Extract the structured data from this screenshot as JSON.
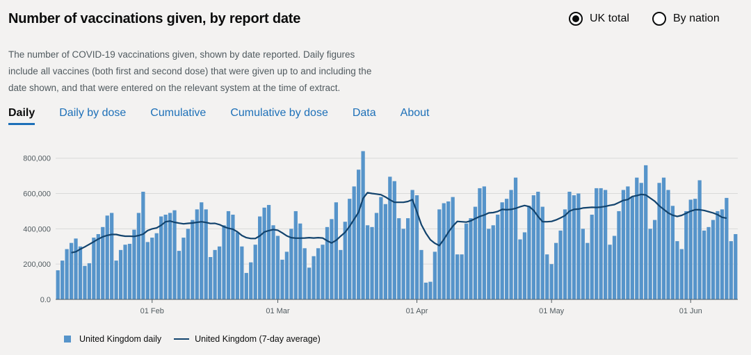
{
  "header": {
    "title": "Number of vaccinations given, by report date",
    "toggle_uk": "UK total",
    "toggle_nation": "By nation"
  },
  "description": "The number of COVID-19 vaccinations given, shown by date reported. Daily figures include all vaccines (both first and second dose) that were given up to and including the date shown, and that were entered on the relevant system at the time of extract.",
  "tabs": [
    "Daily",
    "Daily by dose",
    "Cumulative",
    "Cumulative by dose",
    "Data",
    "About"
  ],
  "colors": {
    "bar": "#5694ca",
    "line": "#12436d",
    "accent": "#1d70b8"
  },
  "chart_data": {
    "type": "bar",
    "title": "Number of vaccinations given, by report date",
    "xlabel": "",
    "ylabel": "",
    "ylim": [
      0,
      850000
    ],
    "yticks": [
      0,
      200000,
      400000,
      600000,
      800000
    ],
    "ytick_labels": [
      "0.0",
      "200,000",
      "400,000",
      "600,000",
      "800,000"
    ],
    "x_tick_labels": [
      {
        "index": 21,
        "label": "01 Feb"
      },
      {
        "index": 49,
        "label": "01 Mar"
      },
      {
        "index": 80,
        "label": "01 Apr"
      },
      {
        "index": 110,
        "label": "01 May"
      },
      {
        "index": 141,
        "label": "01 Jun"
      }
    ],
    "series": [
      {
        "name": "United Kingdom daily",
        "type": "bar",
        "values": [
          165000,
          220000,
          285000,
          320000,
          345000,
          300000,
          190000,
          205000,
          350000,
          370000,
          410000,
          475000,
          490000,
          220000,
          280000,
          310000,
          315000,
          395000,
          490000,
          610000,
          325000,
          350000,
          375000,
          470000,
          480000,
          490000,
          505000,
          275000,
          350000,
          400000,
          450000,
          510000,
          550000,
          510000,
          240000,
          280000,
          300000,
          420000,
          500000,
          480000,
          380000,
          300000,
          150000,
          210000,
          310000,
          470000,
          520000,
          535000,
          420000,
          360000,
          225000,
          270000,
          400000,
          500000,
          430000,
          290000,
          180000,
          245000,
          290000,
          310000,
          410000,
          455000,
          550000,
          280000,
          440000,
          570000,
          640000,
          735000,
          840000,
          420000,
          410000,
          490000,
          580000,
          540000,
          695000,
          670000,
          460000,
          400000,
          460000,
          620000,
          590000,
          280000,
          95000,
          100000,
          270000,
          510000,
          545000,
          555000,
          580000,
          255000,
          255000,
          430000,
          460000,
          525000,
          630000,
          640000,
          400000,
          420000,
          480000,
          550000,
          570000,
          620000,
          690000,
          340000,
          380000,
          530000,
          590000,
          610000,
          525000,
          255000,
          200000,
          320000,
          390000,
          510000,
          610000,
          590000,
          600000,
          400000,
          320000,
          480000,
          630000,
          630000,
          620000,
          310000,
          360000,
          500000,
          620000,
          640000,
          580000,
          690000,
          660000,
          760000,
          400000,
          450000,
          660000,
          690000,
          620000,
          530000,
          330000,
          285000,
          500000,
          565000,
          570000,
          675000,
          390000,
          410000,
          450000,
          500000,
          510000,
          575000,
          330000,
          370000
        ]
      },
      {
        "name": "United Kingdom (7-day average)",
        "type": "line",
        "start_index": 3,
        "values": [
          265000,
          270000,
          285000,
          298000,
          312000,
          327000,
          342000,
          355000,
          363000,
          368000,
          368000,
          362000,
          358000,
          358000,
          357000,
          362000,
          370000,
          390000,
          400000,
          405000,
          420000,
          440000,
          444000,
          437000,
          432000,
          428000,
          431000,
          433000,
          437000,
          440000,
          436000,
          430000,
          431000,
          424000,
          412000,
          403000,
          398000,
          383000,
          362000,
          350000,
          345000,
          345000,
          360000,
          382000,
          390000,
          396000,
          392000,
          377000,
          360000,
          350000,
          347000,
          347000,
          348000,
          350000,
          348000,
          350000,
          348000,
          332000,
          320000,
          335000,
          358000,
          380000,
          414000,
          454000,
          493000,
          572000,
          605000,
          600000,
          597000,
          593000,
          580000,
          564000,
          550000,
          550000,
          550000,
          555000,
          565000,
          497000,
          423000,
          375000,
          338000,
          318000,
          305000,
          340000,
          380000,
          415000,
          442000,
          440000,
          438000,
          445000,
          458000,
          470000,
          478000,
          490000,
          492000,
          498000,
          510000,
          508000,
          510000,
          516000,
          525000,
          532000,
          526000,
          505000,
          470000,
          440000,
          440000,
          442000,
          450000,
          462000,
          475000,
          500000,
          510000,
          512000,
          518000,
          520000,
          522000,
          521000,
          523000,
          527000,
          533000,
          537000,
          549000,
          561000,
          566000,
          583000,
          588000,
          595000,
          592000,
          574000,
          556000,
          530000,
          510000,
          490000,
          477000,
          470000,
          476000,
          488000,
          500000,
          508000,
          508000,
          504000,
          497000,
          490000,
          480000,
          465000,
          460000
        ]
      }
    ],
    "legend": [
      "United Kingdom daily",
      "United Kingdom (7-day average)"
    ],
    "legend_position": "bottom-left"
  }
}
